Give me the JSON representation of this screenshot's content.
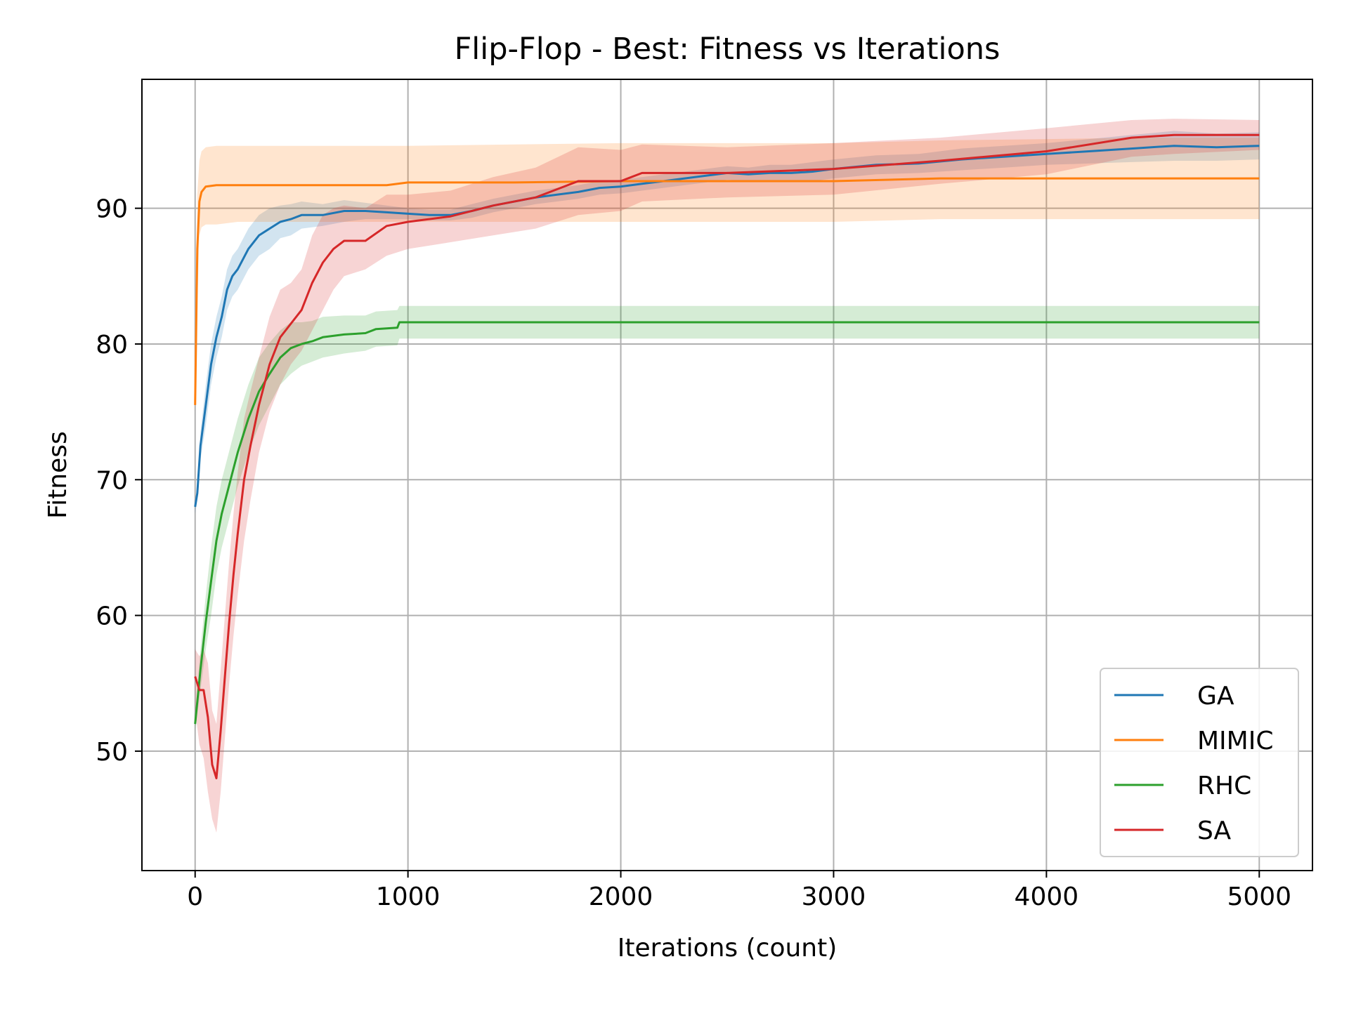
{
  "chart_data": {
    "type": "line",
    "title": "Flip-Flop - Best: Fitness vs Iterations",
    "xlabel": "Iterations (count)",
    "ylabel": "Fitness",
    "xlim": [
      -250,
      5250
    ],
    "ylim": [
      41.2,
      99.5
    ],
    "xticks": [
      0,
      1000,
      2000,
      3000,
      4000,
      5000
    ],
    "yticks": [
      50,
      60,
      70,
      80,
      90
    ],
    "grid": true,
    "legend": "bottom-right",
    "series": [
      {
        "name": "GA",
        "color": "#1f77b4",
        "x": [
          0,
          10,
          25,
          50,
          75,
          100,
          125,
          150,
          175,
          200,
          250,
          300,
          350,
          400,
          450,
          500,
          600,
          700,
          800,
          900,
          1000,
          1100,
          1200,
          1300,
          1400,
          1500,
          1600,
          1700,
          1800,
          1900,
          2000,
          2100,
          2200,
          2300,
          2400,
          2500,
          2600,
          2700,
          2800,
          2900,
          3000,
          3200,
          3400,
          3600,
          3800,
          4000,
          4200,
          4400,
          4600,
          4800,
          5000
        ],
        "y": [
          68.0,
          69.0,
          72.5,
          75.5,
          78.5,
          80.5,
          82.0,
          84.0,
          85.0,
          85.5,
          87.0,
          88.0,
          88.5,
          89.0,
          89.2,
          89.5,
          89.5,
          89.8,
          89.8,
          89.7,
          89.6,
          89.5,
          89.5,
          89.8,
          90.2,
          90.5,
          90.8,
          91.0,
          91.2,
          91.5,
          91.6,
          91.8,
          92.0,
          92.2,
          92.4,
          92.6,
          92.5,
          92.6,
          92.6,
          92.7,
          92.9,
          93.2,
          93.3,
          93.6,
          93.8,
          94.0,
          94.2,
          94.4,
          94.6,
          94.5,
          94.6
        ],
        "lower": [
          67.5,
          68.5,
          71.5,
          74.0,
          77.0,
          79.0,
          80.5,
          82.5,
          83.5,
          84.0,
          85.5,
          86.5,
          87.0,
          87.8,
          88.0,
          88.5,
          88.7,
          89.0,
          89.2,
          89.2,
          89.2,
          89.1,
          89.1,
          89.3,
          89.7,
          90.0,
          90.3,
          90.5,
          90.7,
          91.0,
          91.1,
          91.3,
          91.5,
          91.7,
          91.9,
          92.1,
          92.0,
          92.0,
          92.0,
          92.0,
          92.2,
          92.5,
          92.6,
          92.8,
          93.0,
          93.2,
          93.3,
          93.4,
          93.5,
          93.5,
          93.6
        ],
        "upper": [
          68.5,
          69.5,
          73.5,
          77.0,
          80.0,
          82.0,
          83.5,
          85.5,
          86.5,
          87.0,
          88.5,
          89.5,
          90.0,
          90.2,
          90.3,
          90.5,
          90.3,
          90.6,
          90.4,
          90.2,
          90.0,
          89.9,
          89.9,
          90.3,
          90.7,
          91.0,
          91.3,
          91.5,
          91.7,
          92.0,
          92.1,
          92.3,
          92.5,
          92.7,
          92.9,
          93.1,
          93.0,
          93.2,
          93.2,
          93.4,
          93.6,
          93.9,
          94.0,
          94.4,
          94.6,
          94.8,
          95.1,
          95.4,
          95.7,
          95.5,
          95.6
        ]
      },
      {
        "name": "MIMIC",
        "color": "#ff7f0e",
        "x": [
          0,
          10,
          20,
          30,
          50,
          100,
          200,
          300,
          500,
          700,
          900,
          1000,
          1500,
          2000,
          2500,
          3000,
          3500,
          4000,
          4500,
          5000
        ],
        "y": [
          75.5,
          87.0,
          90.5,
          91.2,
          91.6,
          91.7,
          91.7,
          91.7,
          91.7,
          91.7,
          91.7,
          91.9,
          91.9,
          92.0,
          92.0,
          92.0,
          92.2,
          92.2,
          92.2,
          92.2
        ],
        "lower": [
          75.0,
          83.0,
          88.0,
          88.6,
          88.8,
          88.8,
          89.0,
          89.0,
          89.0,
          89.0,
          89.0,
          89.0,
          89.0,
          89.0,
          89.0,
          89.0,
          89.2,
          89.2,
          89.2,
          89.2
        ],
        "upper": [
          76.0,
          91.0,
          93.5,
          94.2,
          94.5,
          94.6,
          94.6,
          94.6,
          94.6,
          94.6,
          94.6,
          94.6,
          94.7,
          94.8,
          94.8,
          94.8,
          95.0,
          95.1,
          95.2,
          95.2
        ]
      },
      {
        "name": "RHC",
        "color": "#2ca02c",
        "x": [
          0,
          25,
          50,
          75,
          100,
          125,
          150,
          175,
          200,
          250,
          300,
          350,
          400,
          450,
          500,
          550,
          600,
          700,
          800,
          850,
          950,
          960,
          1000,
          2000,
          3000,
          4000,
          5000
        ],
        "y": [
          52.0,
          56.0,
          59.5,
          62.5,
          65.5,
          67.5,
          69.0,
          70.5,
          72.0,
          74.5,
          76.5,
          77.8,
          79.0,
          79.7,
          80.0,
          80.2,
          80.5,
          80.7,
          80.8,
          81.1,
          81.2,
          81.6,
          81.6,
          81.6,
          81.6,
          81.6,
          81.6
        ],
        "lower": [
          51.5,
          54.5,
          57.5,
          60.0,
          63.0,
          65.0,
          66.5,
          68.0,
          69.5,
          72.0,
          74.0,
          75.5,
          77.0,
          77.8,
          78.4,
          78.7,
          79.0,
          79.3,
          79.5,
          79.8,
          79.9,
          80.4,
          80.4,
          80.4,
          80.4,
          80.4,
          80.4
        ],
        "upper": [
          52.5,
          57.5,
          61.5,
          65.0,
          68.0,
          70.0,
          71.5,
          73.0,
          74.5,
          77.0,
          79.0,
          80.1,
          81.0,
          81.6,
          81.6,
          81.7,
          82.0,
          82.1,
          82.1,
          82.4,
          82.5,
          82.8,
          82.8,
          82.8,
          82.8,
          82.8,
          82.8
        ]
      },
      {
        "name": "SA",
        "color": "#d62728",
        "x": [
          0,
          20,
          40,
          60,
          80,
          100,
          120,
          140,
          160,
          180,
          200,
          230,
          260,
          300,
          350,
          400,
          450,
          500,
          550,
          600,
          650,
          700,
          800,
          900,
          1000,
          1200,
          1400,
          1600,
          1800,
          2000,
          2100,
          2500,
          3000,
          3500,
          4000,
          4400,
          4600,
          5000
        ],
        "y": [
          55.5,
          54.5,
          54.5,
          52.5,
          49.0,
          48.0,
          51.5,
          55.5,
          59.5,
          63.0,
          66.0,
          70.0,
          72.5,
          75.5,
          78.5,
          80.5,
          81.5,
          82.5,
          84.5,
          86.0,
          87.0,
          87.6,
          87.6,
          88.7,
          89.0,
          89.4,
          90.2,
          90.8,
          92.0,
          92.0,
          92.6,
          92.6,
          92.9,
          93.5,
          94.2,
          95.2,
          95.4,
          95.4
        ],
        "lower": [
          53.0,
          50.5,
          49.5,
          47.0,
          45.0,
          44.0,
          47.0,
          51.0,
          55.0,
          58.5,
          61.5,
          65.5,
          68.5,
          72.0,
          75.0,
          77.0,
          78.5,
          79.5,
          81.0,
          82.5,
          84.0,
          85.0,
          85.5,
          86.5,
          87.0,
          87.5,
          88.0,
          88.5,
          89.5,
          89.8,
          90.5,
          90.8,
          91.0,
          91.8,
          92.5,
          93.8,
          94.0,
          94.3
        ],
        "upper": [
          57.5,
          57.0,
          57.5,
          56.5,
          53.0,
          52.0,
          56.0,
          60.0,
          64.0,
          67.5,
          70.5,
          74.5,
          76.5,
          79.0,
          82.0,
          84.0,
          84.5,
          85.5,
          88.0,
          89.5,
          90.0,
          90.2,
          90.0,
          91.0,
          91.0,
          91.3,
          92.3,
          93.0,
          94.5,
          94.3,
          94.7,
          94.5,
          94.8,
          95.2,
          95.9,
          96.5,
          96.6,
          96.5
        ]
      }
    ]
  }
}
